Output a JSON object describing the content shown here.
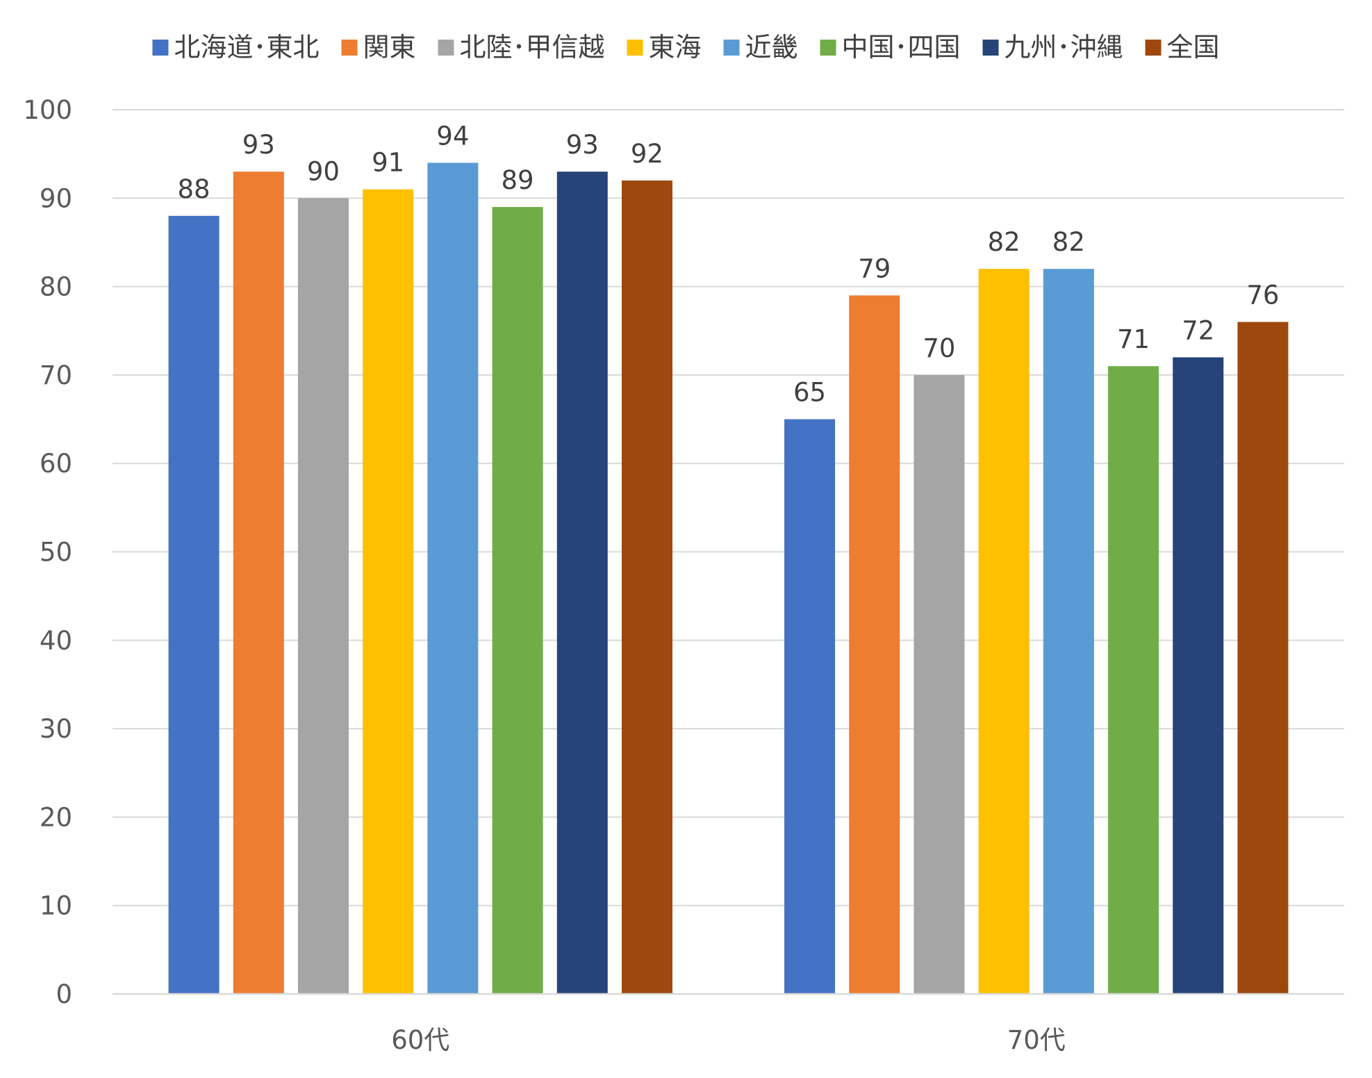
{
  "chart_data": {
    "type": "bar",
    "title": "",
    "xlabel": "",
    "ylabel": "",
    "categories": [
      "60代",
      "70代"
    ],
    "ylim": [
      0,
      100
    ],
    "yticks": [
      0,
      10,
      20,
      30,
      40,
      50,
      60,
      70,
      80,
      90,
      100
    ],
    "grid": true,
    "legend_position": "top",
    "series": [
      {
        "name": "北海道･東北",
        "color": "#4472C4",
        "values": [
          88,
          65
        ]
      },
      {
        "name": "関東",
        "color": "#ED7D31",
        "values": [
          93,
          79
        ]
      },
      {
        "name": "北陸･甲信越",
        "color": "#A5A5A5",
        "values": [
          90,
          70
        ]
      },
      {
        "name": "東海",
        "color": "#FFC000",
        "values": [
          91,
          82
        ]
      },
      {
        "name": "近畿",
        "color": "#5B9BD5",
        "values": [
          94,
          82
        ]
      },
      {
        "name": "中国･四国",
        "color": "#70AD47",
        "values": [
          89,
          71
        ]
      },
      {
        "name": "九州･沖縄",
        "color": "#264478",
        "values": [
          93,
          72
        ]
      },
      {
        "name": "全国",
        "color": "#9E480E",
        "values": [
          92,
          76
        ]
      }
    ]
  }
}
